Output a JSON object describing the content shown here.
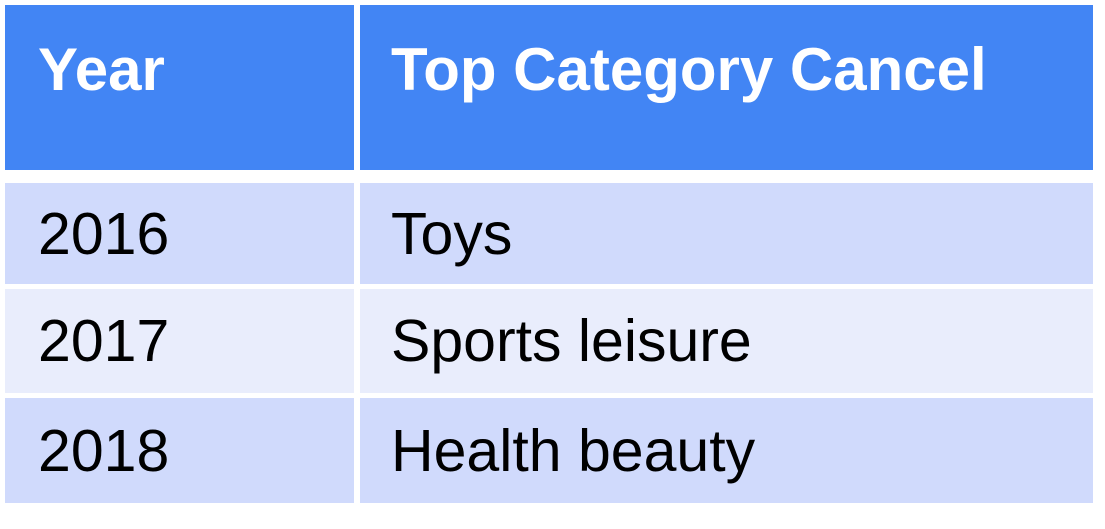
{
  "table": {
    "headers": [
      "Year",
      "Top Category Cancel"
    ],
    "rows": [
      [
        "2016",
        "Toys"
      ],
      [
        "2017",
        "Sports leisure"
      ],
      [
        "2018",
        "Health beauty"
      ]
    ]
  },
  "colors": {
    "header_bg": "#4285f4",
    "header_text": "#ffffff",
    "row_odd_bg": "#d0dafc",
    "row_even_bg": "#e9edfc"
  }
}
